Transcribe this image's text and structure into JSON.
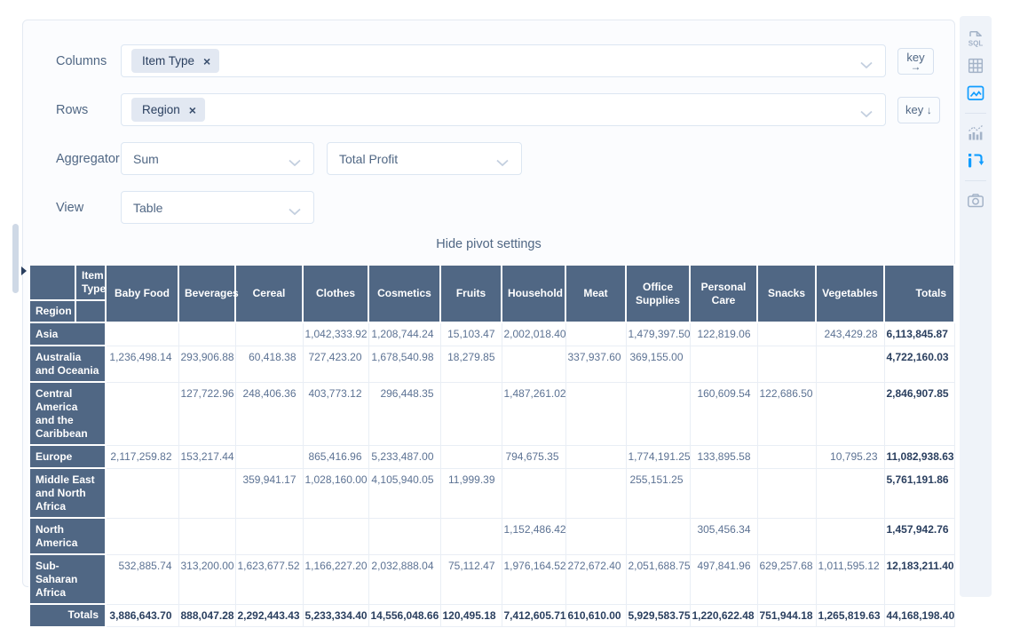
{
  "colors": {
    "header_bg": "#506784",
    "accent_blue": "#119dff",
    "text_dark": "#2a3f5f",
    "text_muted": "#506784",
    "panel_bg": "#fbfcfe",
    "toolbar_bg": "#eff3f9"
  },
  "controls": {
    "columns": {
      "label": "Columns",
      "tag": "Item Type",
      "remove_glyph": "×",
      "key_label": "key",
      "key_arrow": "→"
    },
    "rows": {
      "label": "Rows",
      "tag": "Region",
      "remove_glyph": "×",
      "key_label": "key",
      "key_arrow": "↓"
    },
    "aggregator": {
      "label": "Aggregator",
      "selected": "Sum",
      "value_field": "Total Profit"
    },
    "view": {
      "label": "View",
      "selected": "Table"
    },
    "hide_settings_label": "Hide pivot settings"
  },
  "toolbar": {
    "sql_icon_text": "SQL",
    "icons": [
      {
        "name": "sql-icon",
        "active": false
      },
      {
        "name": "table-grid-icon",
        "active": false
      },
      {
        "name": "chart-image-icon",
        "active": true
      },
      {
        "name": "bar-chart-icon",
        "active": false
      },
      {
        "name": "pivot-icon",
        "active": true
      },
      {
        "name": "camera-icon",
        "active": false
      }
    ]
  },
  "pivot": {
    "col_axis_label": "Item Type",
    "row_axis_label": "Region",
    "totals_label": "Totals",
    "columns": [
      "Baby Food",
      "Beverages",
      "Cereal",
      "Clothes",
      "Cosmetics",
      "Fruits",
      "Household",
      "Meat",
      "Office Supplies",
      "Personal Care",
      "Snacks",
      "Vegetables"
    ],
    "rows": [
      {
        "label": "Asia",
        "values": [
          "",
          "",
          "",
          "1,042,333.92",
          "1,208,744.24",
          "15,103.47",
          "2,002,018.40",
          "",
          "1,479,397.50",
          "122,819.06",
          "",
          "243,429.28"
        ],
        "total": "6,113,845.87"
      },
      {
        "label": "Australia and Oceania",
        "values": [
          "1,236,498.14",
          "293,906.88",
          "60,418.38",
          "727,423.20",
          "1,678,540.98",
          "18,279.85",
          "",
          "337,937.60",
          "369,155.00",
          "",
          "",
          ""
        ],
        "total": "4,722,160.03"
      },
      {
        "label": "Central America and the Caribbean",
        "values": [
          "",
          "127,722.96",
          "248,406.36",
          "403,773.12",
          "296,448.35",
          "",
          "1,487,261.02",
          "",
          "",
          "160,609.54",
          "122,686.50",
          ""
        ],
        "total": "2,846,907.85"
      },
      {
        "label": "Europe",
        "values": [
          "2,117,259.82",
          "153,217.44",
          "",
          "865,416.96",
          "5,233,487.00",
          "",
          "794,675.35",
          "",
          "1,774,191.25",
          "133,895.58",
          "",
          "10,795.23"
        ],
        "total": "11,082,938.63"
      },
      {
        "label": "Middle East and North Africa",
        "values": [
          "",
          "",
          "359,941.17",
          "1,028,160.00",
          "4,105,940.05",
          "11,999.39",
          "",
          "",
          "255,151.25",
          "",
          "",
          ""
        ],
        "total": "5,761,191.86"
      },
      {
        "label": "North America",
        "values": [
          "",
          "",
          "",
          "",
          "",
          "",
          "1,152,486.42",
          "",
          "",
          "305,456.34",
          "",
          ""
        ],
        "total": "1,457,942.76"
      },
      {
        "label": "Sub-Saharan Africa",
        "values": [
          "532,885.74",
          "313,200.00",
          "1,623,677.52",
          "1,166,227.20",
          "2,032,888.04",
          "75,112.47",
          "1,976,164.52",
          "272,672.40",
          "2,051,688.75",
          "497,841.96",
          "629,257.68",
          "1,011,595.12"
        ],
        "total": "12,183,211.40"
      }
    ],
    "totals_row": {
      "values": [
        "3,886,643.70",
        "888,047.28",
        "2,292,443.43",
        "5,233,334.40",
        "14,556,048.66",
        "120,495.18",
        "7,412,605.71",
        "610,610.00",
        "5,929,583.75",
        "1,220,622.48",
        "751,944.18",
        "1,265,819.63"
      ],
      "total": "44,168,198.40"
    }
  }
}
